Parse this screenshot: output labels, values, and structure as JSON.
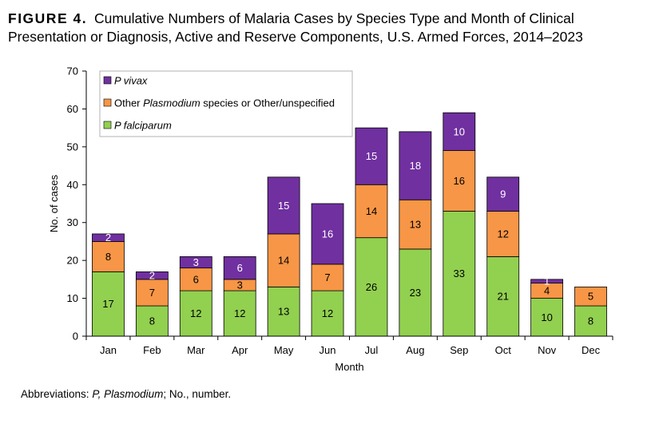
{
  "figure": {
    "label": "FIGURE 4.",
    "title": "Cumulative Numbers of Malaria Cases by Species Type and Month of Clinical Presentation or Diagnosis, Active and Reserve Components, U.S. Armed Forces, 2014–2023"
  },
  "footnote": {
    "prefix": "Abbreviations: ",
    "abbr1": "P, Plasmodium",
    "middle": "; No., number."
  },
  "chart_data": {
    "type": "bar",
    "stacked": true,
    "categories": [
      "Jan",
      "Feb",
      "Mar",
      "Apr",
      "May",
      "Jun",
      "Jul",
      "Aug",
      "Sep",
      "Oct",
      "Nov",
      "Dec"
    ],
    "series": [
      {
        "name": "P falciparum",
        "color": "#92d050",
        "label_color": "#000000",
        "values": [
          17,
          8,
          12,
          12,
          13,
          12,
          26,
          23,
          33,
          21,
          10,
          8
        ]
      },
      {
        "name": "Other Plasmodium species or Other/unspecified",
        "color": "#f79646",
        "label_color": "#000000",
        "values": [
          8,
          7,
          6,
          3,
          14,
          7,
          14,
          13,
          16,
          12,
          4,
          5
        ]
      },
      {
        "name": "P vivax",
        "color": "#7030a0",
        "label_color": "#ffffff",
        "values": [
          2,
          2,
          3,
          6,
          15,
          16,
          15,
          18,
          10,
          9,
          1,
          0
        ]
      }
    ],
    "legend": [
      {
        "prefix": "",
        "italic": "P vivax",
        "suffix": "",
        "color": "#7030a0"
      },
      {
        "prefix": "Other ",
        "italic": "Plasmodium",
        "suffix": " species or Other/unspecified",
        "color": "#f79646"
      },
      {
        "prefix": "",
        "italic": "P falciparum",
        "suffix": "",
        "color": "#92d050"
      }
    ],
    "legend_position": "top-left",
    "xlabel": "Month",
    "ylabel": "No. of cases",
    "ylim": [
      0,
      70
    ],
    "yticks": [
      0,
      10,
      20,
      30,
      40,
      50,
      60,
      70
    ],
    "grid": false
  }
}
